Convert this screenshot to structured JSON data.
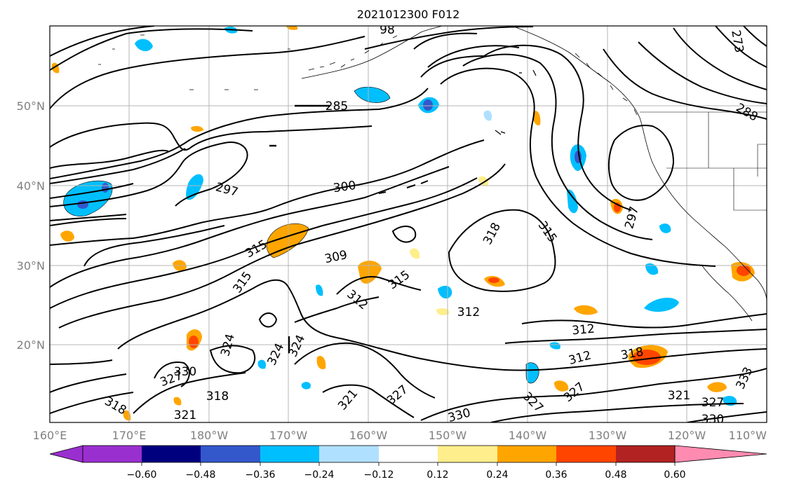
{
  "title": "2021012300 F012",
  "lat_labels": [
    "50°N",
    "40°N",
    "30°N",
    "20°N"
  ],
  "lon_labels": [
    "160°E",
    "170°E",
    "180°W",
    "170°W",
    "160°W",
    "150°W",
    "140°W",
    "130°W",
    "120°W",
    "110°W"
  ],
  "colorbar": {
    "tick_labels": [
      "−0.60",
      "−0.48",
      "−0.36",
      "−0.24",
      "−0.12",
      "0.12",
      "0.24",
      "0.36",
      "0.48",
      "0.60"
    ],
    "colors": [
      "#9a2fd0",
      "#00007f",
      "#3358cc",
      "#00bfff",
      "#b0e0ff",
      "#ffffff",
      "#ffee8c",
      "#ffa500",
      "#ff4500",
      "#b22222",
      "#ff8bb0"
    ]
  },
  "contour_labels": [
    "98",
    "273",
    "285",
    "288",
    "297",
    "300",
    "297",
    "318",
    "315",
    "315",
    "312",
    "309",
    "315",
    "315",
    "312",
    "312",
    "312",
    "324",
    "324",
    "324",
    "330",
    "327",
    "318",
    "318",
    "321",
    "321",
    "327",
    "327",
    "330",
    "327",
    "318",
    "321",
    "327",
    "330",
    "333",
    "321"
  ]
}
